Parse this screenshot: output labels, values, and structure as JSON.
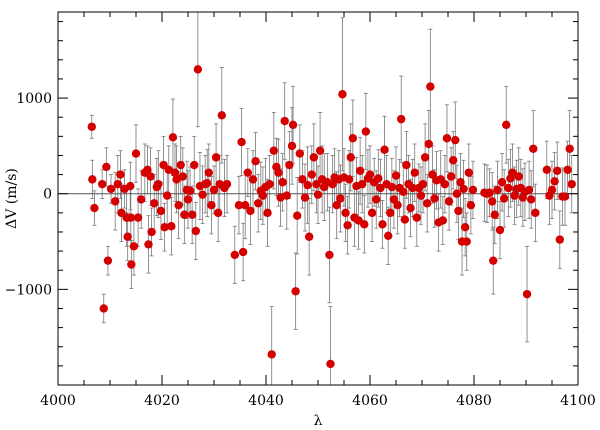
{
  "chart_data": {
    "type": "scatter",
    "title": "",
    "xlabel": "λ",
    "ylabel": "ΔV (m/s)",
    "xlim": [
      4000,
      4100
    ],
    "ylim": [
      -2000,
      1900
    ],
    "x_ticks": [
      4000,
      4020,
      4040,
      4060,
      4080,
      4100
    ],
    "y_ticks": [
      -1000,
      0,
      1000
    ],
    "x_tick_labels": [
      "4000",
      "4020",
      "4040",
      "4060",
      "4080",
      "4100"
    ],
    "y_tick_labels": [
      "−1000",
      "0",
      "1000"
    ],
    "reference_line_y": 0,
    "grid": false,
    "error_bars": true,
    "colors": {
      "point": "#d40000",
      "errorbar": "#777777",
      "axis": "#000000"
    },
    "points": [
      {
        "x": 4006.5,
        "y": 700,
        "err": 120
      },
      {
        "x": 4006.6,
        "y": 150,
        "err": 200
      },
      {
        "x": 4007.0,
        "y": -150,
        "err": 180
      },
      {
        "x": 4008.5,
        "y": 100,
        "err": 150
      },
      {
        "x": 4008.8,
        "y": -1200,
        "err": 150
      },
      {
        "x": 4009.3,
        "y": 280,
        "err": 200
      },
      {
        "x": 4009.6,
        "y": -700,
        "err": 150
      },
      {
        "x": 4010.2,
        "y": 50,
        "err": 150
      },
      {
        "x": 4011.0,
        "y": -80,
        "err": 300
      },
      {
        "x": 4011.5,
        "y": 100,
        "err": 300
      },
      {
        "x": 4012.0,
        "y": 200,
        "err": 250
      },
      {
        "x": 4012.2,
        "y": -200,
        "err": 300
      },
      {
        "x": 4012.8,
        "y": 50,
        "err": 200
      },
      {
        "x": 4013.2,
        "y": -250,
        "err": 300
      },
      {
        "x": 4013.4,
        "y": -450,
        "err": 250
      },
      {
        "x": 4013.9,
        "y": 80,
        "err": 250
      },
      {
        "x": 4014.0,
        "y": -250,
        "err": 300
      },
      {
        "x": 4014.1,
        "y": -740,
        "err": 250
      },
      {
        "x": 4014.6,
        "y": -550,
        "err": 300
      },
      {
        "x": 4015.0,
        "y": 420,
        "err": 300
      },
      {
        "x": 4015.4,
        "y": -250,
        "err": 300
      },
      {
        "x": 4016.0,
        "y": -60,
        "err": 300
      },
      {
        "x": 4016.7,
        "y": 220,
        "err": 300
      },
      {
        "x": 4017.2,
        "y": 250,
        "err": 250
      },
      {
        "x": 4017.4,
        "y": -530,
        "err": 300
      },
      {
        "x": 4017.8,
        "y": 180,
        "err": 300
      },
      {
        "x": 4018.0,
        "y": -400,
        "err": 250
      },
      {
        "x": 4018.5,
        "y": -100,
        "err": 300
      },
      {
        "x": 4019.0,
        "y": 70,
        "err": 300
      },
      {
        "x": 4019.3,
        "y": 100,
        "err": 350
      },
      {
        "x": 4019.8,
        "y": -180,
        "err": 300
      },
      {
        "x": 4020.3,
        "y": 300,
        "err": 300
      },
      {
        "x": 4020.5,
        "y": -350,
        "err": 250
      },
      {
        "x": 4021.0,
        "y": -20,
        "err": 300
      },
      {
        "x": 4021.3,
        "y": 250,
        "err": 250
      },
      {
        "x": 4021.8,
        "y": -340,
        "err": 300
      },
      {
        "x": 4022.1,
        "y": 590,
        "err": 400
      },
      {
        "x": 4022.5,
        "y": 220,
        "err": 300
      },
      {
        "x": 4022.8,
        "y": 150,
        "err": 350
      },
      {
        "x": 4023.2,
        "y": -120,
        "err": 350
      },
      {
        "x": 4023.6,
        "y": 300,
        "err": 300
      },
      {
        "x": 4024.0,
        "y": 180,
        "err": 300
      },
      {
        "x": 4024.3,
        "y": -220,
        "err": 300
      },
      {
        "x": 4024.8,
        "y": 40,
        "err": 300
      },
      {
        "x": 4025.0,
        "y": -60,
        "err": 300
      },
      {
        "x": 4025.4,
        "y": 30,
        "err": 250
      },
      {
        "x": 4025.8,
        "y": -220,
        "err": 300
      },
      {
        "x": 4026.2,
        "y": 300,
        "err": 300
      },
      {
        "x": 4026.5,
        "y": -390,
        "err": 300
      },
      {
        "x": 4026.9,
        "y": 1300,
        "err": 600
      },
      {
        "x": 4027.3,
        "y": 80,
        "err": 350
      },
      {
        "x": 4027.8,
        "y": -10,
        "err": 300
      },
      {
        "x": 4028.3,
        "y": 100,
        "err": 300
      },
      {
        "x": 4028.7,
        "y": 110,
        "err": 350
      },
      {
        "x": 4029.0,
        "y": 220,
        "err": 300
      },
      {
        "x": 4029.5,
        "y": -120,
        "err": 300
      },
      {
        "x": 4030.0,
        "y": 40,
        "err": 250
      },
      {
        "x": 4030.4,
        "y": 380,
        "err": 350
      },
      {
        "x": 4030.8,
        "y": -200,
        "err": 300
      },
      {
        "x": 4031.1,
        "y": 100,
        "err": 300
      },
      {
        "x": 4031.5,
        "y": 820,
        "err": 500
      },
      {
        "x": 4032.0,
        "y": 60,
        "err": 300
      },
      {
        "x": 4032.5,
        "y": 100,
        "err": 300
      },
      {
        "x": 4034.0,
        "y": -640,
        "err": 300
      },
      {
        "x": 4034.8,
        "y": -120,
        "err": 300
      },
      {
        "x": 4035.3,
        "y": 540,
        "err": 350
      },
      {
        "x": 4035.6,
        "y": -610,
        "err": 300
      },
      {
        "x": 4036.0,
        "y": -120,
        "err": 350
      },
      {
        "x": 4036.5,
        "y": 220,
        "err": 250
      },
      {
        "x": 4037.0,
        "y": -180,
        "err": 350
      },
      {
        "x": 4037.5,
        "y": 150,
        "err": 300
      },
      {
        "x": 4038.0,
        "y": 340,
        "err": 300
      },
      {
        "x": 4038.5,
        "y": -100,
        "err": 300
      },
      {
        "x": 4039.0,
        "y": 30,
        "err": 300
      },
      {
        "x": 4039.4,
        "y": -20,
        "err": 300
      },
      {
        "x": 4039.9,
        "y": 70,
        "err": 300
      },
      {
        "x": 4040.3,
        "y": -200,
        "err": 350
      },
      {
        "x": 4040.7,
        "y": 100,
        "err": 300
      },
      {
        "x": 4041.1,
        "y": -1680,
        "err": 500
      },
      {
        "x": 4041.5,
        "y": 450,
        "err": 400
      },
      {
        "x": 4042.0,
        "y": 280,
        "err": 300
      },
      {
        "x": 4042.4,
        "y": 220,
        "err": 350
      },
      {
        "x": 4042.8,
        "y": -40,
        "err": 300
      },
      {
        "x": 4043.2,
        "y": 120,
        "err": 300
      },
      {
        "x": 4043.6,
        "y": 760,
        "err": 400
      },
      {
        "x": 4044.0,
        "y": -20,
        "err": 350
      },
      {
        "x": 4044.5,
        "y": 300,
        "err": 350
      },
      {
        "x": 4045.0,
        "y": 500,
        "err": 400
      },
      {
        "x": 4045.2,
        "y": 720,
        "err": 400
      },
      {
        "x": 4045.7,
        "y": -1020,
        "err": 400
      },
      {
        "x": 4046.0,
        "y": -230,
        "err": 400
      },
      {
        "x": 4046.5,
        "y": 420,
        "err": 300
      },
      {
        "x": 4047.0,
        "y": 150,
        "err": 300
      },
      {
        "x": 4047.5,
        "y": -40,
        "err": 350
      },
      {
        "x": 4048.0,
        "y": 90,
        "err": 400
      },
      {
        "x": 4048.3,
        "y": -450,
        "err": 400
      },
      {
        "x": 4048.8,
        "y": 200,
        "err": 300
      },
      {
        "x": 4049.2,
        "y": 380,
        "err": 350
      },
      {
        "x": 4049.7,
        "y": 100,
        "err": 300
      },
      {
        "x": 4050.0,
        "y": -10,
        "err": 300
      },
      {
        "x": 4050.4,
        "y": 450,
        "err": 400
      },
      {
        "x": 4050.8,
        "y": 150,
        "err": 350
      },
      {
        "x": 4051.2,
        "y": 70,
        "err": 350
      },
      {
        "x": 4051.8,
        "y": 120,
        "err": 300
      },
      {
        "x": 4052.2,
        "y": -640,
        "err": 500
      },
      {
        "x": 4052.4,
        "y": -1780,
        "err": 600
      },
      {
        "x": 4052.8,
        "y": 100,
        "err": 300
      },
      {
        "x": 4053.2,
        "y": 170,
        "err": 300
      },
      {
        "x": 4053.6,
        "y": -120,
        "err": 350
      },
      {
        "x": 4054.0,
        "y": 150,
        "err": 300
      },
      {
        "x": 4054.3,
        "y": -50,
        "err": 350
      },
      {
        "x": 4054.7,
        "y": 1040,
        "err": 800
      },
      {
        "x": 4055.0,
        "y": 170,
        "err": 300
      },
      {
        "x": 4055.3,
        "y": -200,
        "err": 300
      },
      {
        "x": 4055.7,
        "y": -330,
        "err": 300
      },
      {
        "x": 4056.0,
        "y": 150,
        "err": 300
      },
      {
        "x": 4056.3,
        "y": 380,
        "err": 350
      },
      {
        "x": 4056.7,
        "y": 580,
        "err": 400
      },
      {
        "x": 4057.0,
        "y": -250,
        "err": 300
      },
      {
        "x": 4057.4,
        "y": 80,
        "err": 300
      },
      {
        "x": 4057.8,
        "y": -280,
        "err": 300
      },
      {
        "x": 4058.1,
        "y": 240,
        "err": 350
      },
      {
        "x": 4058.5,
        "y": 100,
        "err": 300
      },
      {
        "x": 4058.9,
        "y": -320,
        "err": 300
      },
      {
        "x": 4059.2,
        "y": 650,
        "err": 400
      },
      {
        "x": 4059.6,
        "y": 160,
        "err": 300
      },
      {
        "x": 4060.0,
        "y": 200,
        "err": 300
      },
      {
        "x": 4060.4,
        "y": -200,
        "err": 300
      },
      {
        "x": 4060.8,
        "y": 120,
        "err": 250
      },
      {
        "x": 4061.2,
        "y": -60,
        "err": 300
      },
      {
        "x": 4061.6,
        "y": 160,
        "err": 300
      },
      {
        "x": 4062.0,
        "y": 60,
        "err": 300
      },
      {
        "x": 4062.4,
        "y": -320,
        "err": 250
      },
      {
        "x": 4062.8,
        "y": 460,
        "err": 350
      },
      {
        "x": 4063.2,
        "y": 100,
        "err": 300
      },
      {
        "x": 4063.5,
        "y": -440,
        "err": 300
      },
      {
        "x": 4063.9,
        "y": -200,
        "err": 250
      },
      {
        "x": 4064.2,
        "y": 70,
        "err": 300
      },
      {
        "x": 4064.6,
        "y": -60,
        "err": 300
      },
      {
        "x": 4065.0,
        "y": 190,
        "err": 300
      },
      {
        "x": 4065.3,
        "y": -120,
        "err": 300
      },
      {
        "x": 4065.7,
        "y": 60,
        "err": 300
      },
      {
        "x": 4066.0,
        "y": 780,
        "err": 450
      },
      {
        "x": 4066.4,
        "y": 20,
        "err": 300
      },
      {
        "x": 4066.7,
        "y": -270,
        "err": 300
      },
      {
        "x": 4067.0,
        "y": 300,
        "err": 350
      },
      {
        "x": 4067.4,
        "y": 100,
        "err": 300
      },
      {
        "x": 4067.8,
        "y": -150,
        "err": 300
      },
      {
        "x": 4068.2,
        "y": 60,
        "err": 300
      },
      {
        "x": 4068.6,
        "y": 220,
        "err": 300
      },
      {
        "x": 4069.0,
        "y": -250,
        "err": 300
      },
      {
        "x": 4069.4,
        "y": 60,
        "err": 250
      },
      {
        "x": 4069.8,
        "y": -20,
        "err": 300
      },
      {
        "x": 4070.2,
        "y": 100,
        "err": 300
      },
      {
        "x": 4070.6,
        "y": 380,
        "err": 350
      },
      {
        "x": 4071.0,
        "y": -100,
        "err": 300
      },
      {
        "x": 4071.3,
        "y": 520,
        "err": 350
      },
      {
        "x": 4071.6,
        "y": 1120,
        "err": 600
      },
      {
        "x": 4072.0,
        "y": 200,
        "err": 300
      },
      {
        "x": 4072.4,
        "y": -50,
        "err": 300
      },
      {
        "x": 4072.8,
        "y": 140,
        "err": 300
      },
      {
        "x": 4073.2,
        "y": -300,
        "err": 300
      },
      {
        "x": 4073.6,
        "y": 150,
        "err": 300
      },
      {
        "x": 4074.0,
        "y": -280,
        "err": 250
      },
      {
        "x": 4074.4,
        "y": 100,
        "err": 300
      },
      {
        "x": 4074.8,
        "y": 580,
        "err": 350
      },
      {
        "x": 4075.2,
        "y": -80,
        "err": 300
      },
      {
        "x": 4075.6,
        "y": 180,
        "err": 300
      },
      {
        "x": 4076.0,
        "y": 350,
        "err": 300
      },
      {
        "x": 4076.4,
        "y": 560,
        "err": 400
      },
      {
        "x": 4076.7,
        "y": 0,
        "err": 300
      },
      {
        "x": 4077.0,
        "y": -180,
        "err": 300
      },
      {
        "x": 4077.4,
        "y": 120,
        "err": 300
      },
      {
        "x": 4077.7,
        "y": -500,
        "err": 350
      },
      {
        "x": 4078.0,
        "y": 50,
        "err": 300
      },
      {
        "x": 4078.3,
        "y": -350,
        "err": 300
      },
      {
        "x": 4078.6,
        "y": -500,
        "err": 300
      },
      {
        "x": 4079.0,
        "y": 220,
        "err": 300
      },
      {
        "x": 4079.4,
        "y": -120,
        "err": 300
      },
      {
        "x": 4079.8,
        "y": 40,
        "err": 300
      },
      {
        "x": 4082.0,
        "y": 10,
        "err": 300
      },
      {
        "x": 4082.5,
        "y": 0,
        "err": 300
      },
      {
        "x": 4083.0,
        "y": 10,
        "err": 250
      },
      {
        "x": 4083.5,
        "y": -80,
        "err": 300
      },
      {
        "x": 4083.7,
        "y": -700,
        "err": 350
      },
      {
        "x": 4084.0,
        "y": -220,
        "err": 300
      },
      {
        "x": 4084.5,
        "y": 40,
        "err": 300
      },
      {
        "x": 4085.0,
        "y": -380,
        "err": 300
      },
      {
        "x": 4085.4,
        "y": 120,
        "err": 300
      },
      {
        "x": 4085.8,
        "y": -50,
        "err": 300
      },
      {
        "x": 4086.2,
        "y": 720,
        "err": 400
      },
      {
        "x": 4086.6,
        "y": 60,
        "err": 300
      },
      {
        "x": 4087.0,
        "y": 160,
        "err": 300
      },
      {
        "x": 4087.4,
        "y": 220,
        "err": 300
      },
      {
        "x": 4087.8,
        "y": -20,
        "err": 300
      },
      {
        "x": 4088.2,
        "y": 50,
        "err": 300
      },
      {
        "x": 4088.6,
        "y": 180,
        "err": 300
      },
      {
        "x": 4089.0,
        "y": 60,
        "err": 300
      },
      {
        "x": 4089.4,
        "y": -40,
        "err": 300
      },
      {
        "x": 4089.8,
        "y": 20,
        "err": 300
      },
      {
        "x": 4090.2,
        "y": -1050,
        "err": 500
      },
      {
        "x": 4090.6,
        "y": 40,
        "err": 300
      },
      {
        "x": 4091.0,
        "y": -60,
        "err": 300
      },
      {
        "x": 4091.4,
        "y": 470,
        "err": 400
      },
      {
        "x": 4091.8,
        "y": -200,
        "err": 300
      },
      {
        "x": 4094.0,
        "y": 250,
        "err": 300
      },
      {
        "x": 4094.5,
        "y": -20,
        "err": 300
      },
      {
        "x": 4095.0,
        "y": 40,
        "err": 300
      },
      {
        "x": 4095.5,
        "y": 130,
        "err": 300
      },
      {
        "x": 4096.0,
        "y": 240,
        "err": 300
      },
      {
        "x": 4096.5,
        "y": -480,
        "err": 300
      },
      {
        "x": 4097.0,
        "y": -30,
        "err": 300
      },
      {
        "x": 4097.5,
        "y": -30,
        "err": 300
      },
      {
        "x": 4098.0,
        "y": 250,
        "err": 300
      },
      {
        "x": 4098.4,
        "y": 470,
        "err": 400
      },
      {
        "x": 4098.8,
        "y": 100,
        "err": 300
      }
    ]
  }
}
